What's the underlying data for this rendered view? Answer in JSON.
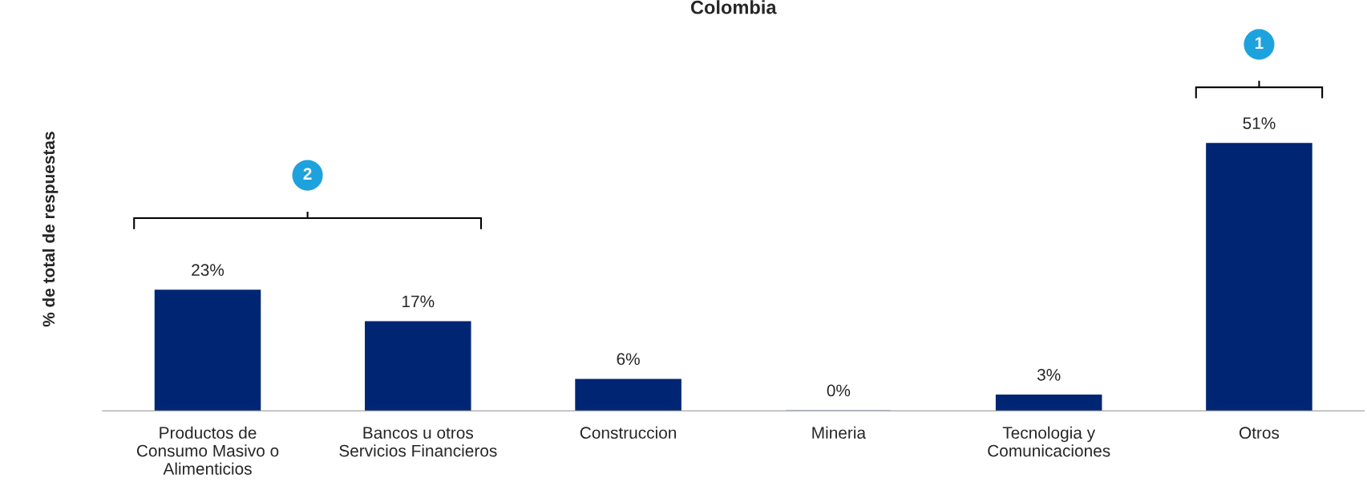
{
  "chart_data": {
    "type": "bar",
    "title": "Colombia",
    "ylabel": "% de total de respuestas",
    "categories": [
      "Productos de\nConsumo Masivo o\nAlimenticios",
      "Bancos u otros\nServicios Financieros",
      "Construccion",
      "Mineria",
      "Tecnologia y\nComunicaciones",
      "Otros"
    ],
    "values": [
      23,
      17,
      6,
      0,
      3,
      51
    ],
    "color": "#002673",
    "data_labels": true,
    "value_labels": [
      "23%",
      "17%",
      "6%",
      "0%",
      "3%",
      "51%"
    ],
    "annotations": [
      "1",
      "2"
    ],
    "grid": false,
    "legend": false
  }
}
